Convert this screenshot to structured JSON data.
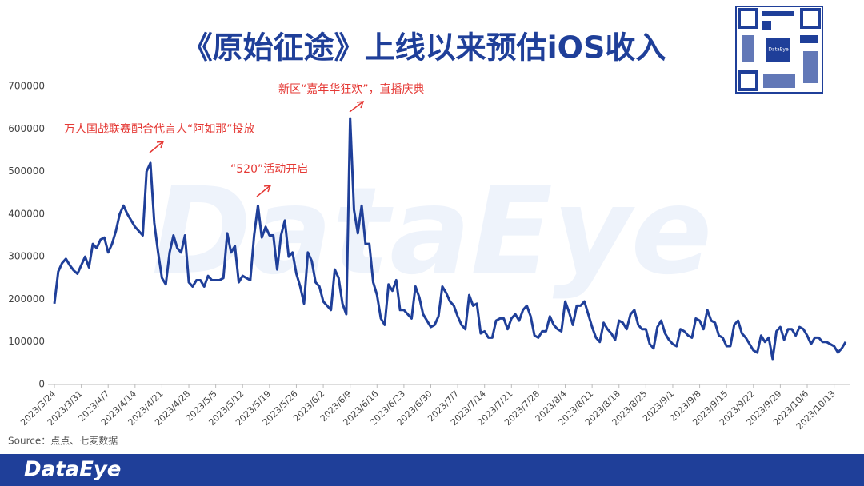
{
  "chart_data": {
    "type": "line",
    "title": "《原始征途》上线以来预估iOS收入",
    "source": "Source：点点、七麦数据",
    "brand": "DataEye",
    "watermark": "DataEye",
    "qr_label": "DataEye",
    "annotations": [
      "万人国战联赛配合代言人“阿如那”投放",
      "“520”活动开启",
      "新区“嘉年华狂欢”，直播庆典"
    ],
    "categories": [
      "2023/3/24",
      null,
      null,
      null,
      null,
      null,
      null,
      "2023/3/31",
      null,
      null,
      null,
      null,
      null,
      null,
      "2023/4/7",
      null,
      null,
      null,
      null,
      null,
      null,
      "2023/4/14",
      null,
      null,
      null,
      null,
      null,
      null,
      "2023/4/21",
      null,
      null,
      null,
      null,
      null,
      null,
      "2023/4/28",
      null,
      null,
      null,
      null,
      null,
      null,
      "2023/5/5",
      null,
      null,
      null,
      null,
      null,
      null,
      "2023/5/12",
      null,
      null,
      null,
      null,
      null,
      null,
      "2023/5/19",
      null,
      null,
      null,
      null,
      null,
      null,
      "2023/5/26",
      null,
      null,
      null,
      null,
      null,
      null,
      "2023/6/2",
      null,
      null,
      null,
      null,
      null,
      null,
      "2023/6/9",
      null,
      null,
      null,
      null,
      null,
      null,
      "2023/6/16",
      null,
      null,
      null,
      null,
      null,
      null,
      "2023/6/23",
      null,
      null,
      null,
      null,
      null,
      null,
      "2023/6/30",
      null,
      null,
      null,
      null,
      null,
      null,
      "2023/7/7",
      null,
      null,
      null,
      null,
      null,
      null,
      "2023/7/14",
      null,
      null,
      null,
      null,
      null,
      null,
      "2023/7/21",
      null,
      null,
      null,
      null,
      null,
      null,
      "2023/7/28",
      null,
      null,
      null,
      null,
      null,
      null,
      "2023/8/4",
      null,
      null,
      null,
      null,
      null,
      null,
      "2023/8/11",
      null,
      null,
      null,
      null,
      null,
      null,
      "2023/8/18",
      null,
      null,
      null,
      null,
      null,
      null,
      "2023/8/25",
      null,
      null,
      null,
      null,
      null,
      null,
      "2023/9/1",
      null,
      null,
      null,
      null,
      null,
      null,
      "2023/9/8",
      null,
      null,
      null,
      null,
      null,
      null,
      "2023/9/15",
      null,
      null,
      null,
      null,
      null,
      null,
      "2023/9/22",
      null,
      null,
      null,
      null,
      null,
      null,
      "2023/9/29",
      null,
      null,
      null,
      null,
      null,
      null,
      "2023/10/6",
      null,
      null,
      null,
      null,
      null,
      null,
      "2023/10/13",
      null,
      null,
      null
    ],
    "series": [
      {
        "color": "#1f3f99",
        "values": [
          190000,
          265000,
          285000,
          295000,
          280000,
          268000,
          260000,
          280000,
          300000,
          275000,
          330000,
          320000,
          340000,
          345000,
          310000,
          330000,
          360000,
          400000,
          420000,
          400000,
          385000,
          370000,
          360000,
          350000,
          500000,
          520000,
          380000,
          310000,
          250000,
          235000,
          310000,
          350000,
          320000,
          310000,
          350000,
          240000,
          230000,
          245000,
          245000,
          230000,
          255000,
          245000,
          245000,
          245000,
          250000,
          355000,
          310000,
          325000,
          240000,
          255000,
          250000,
          245000,
          350000,
          420000,
          345000,
          370000,
          350000,
          350000,
          270000,
          350000,
          385000,
          300000,
          310000,
          260000,
          230000,
          190000,
          310000,
          290000,
          240000,
          230000,
          195000,
          185000,
          175000,
          270000,
          250000,
          190000,
          165000,
          625000,
          410000,
          355000,
          420000,
          330000,
          330000,
          240000,
          210000,
          155000,
          140000,
          235000,
          220000,
          245000,
          175000,
          175000,
          165000,
          155000,
          230000,
          205000,
          165000,
          150000,
          135000,
          140000,
          160000,
          230000,
          215000,
          195000,
          185000,
          160000,
          140000,
          130000,
          210000,
          185000,
          190000,
          120000,
          125000,
          110000,
          110000,
          150000,
          155000,
          155000,
          130000,
          155000,
          165000,
          150000,
          175000,
          185000,
          160000,
          115000,
          110000,
          125000,
          125000,
          160000,
          140000,
          130000,
          125000,
          195000,
          170000,
          140000,
          185000,
          185000,
          195000,
          165000,
          135000,
          110000,
          100000,
          145000,
          130000,
          120000,
          105000,
          150000,
          145000,
          130000,
          165000,
          175000,
          140000,
          130000,
          130000,
          95000,
          85000,
          135000,
          150000,
          120000,
          105000,
          95000,
          90000,
          130000,
          125000,
          115000,
          110000,
          155000,
          150000,
          130000,
          175000,
          150000,
          145000,
          115000,
          110000,
          90000,
          90000,
          140000,
          150000,
          120000,
          110000,
          95000,
          80000,
          75000,
          115000,
          100000,
          110000,
          60000,
          125000,
          135000,
          105000,
          130000,
          130000,
          115000,
          135000,
          130000,
          115000,
          95000,
          110000,
          110000,
          100000,
          100000,
          95000,
          90000,
          75000,
          85000,
          100000
        ]
      }
    ],
    "ylim": [
      0,
      700000
    ],
    "yticks": [
      0,
      100000,
      200000,
      300000,
      400000,
      500000,
      600000,
      700000
    ],
    "grid": false
  }
}
